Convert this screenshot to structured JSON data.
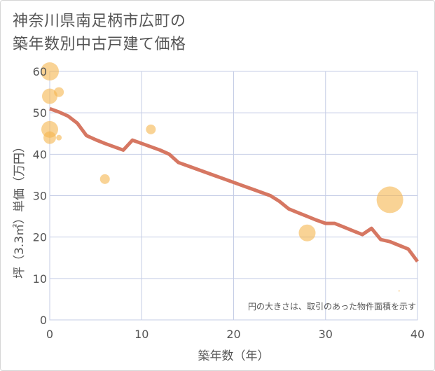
{
  "title_line1": "神奈川県南足柄市広町の",
  "title_line2": "築年数別中古戸建て価格",
  "chart_data": {
    "type": "scatter+line",
    "xlabel": "築年数（年）",
    "ylabel": "坪（3.3㎡）単価（万円）",
    "xlim": [
      0,
      40
    ],
    "ylim": [
      0,
      60
    ],
    "xticks": [
      0,
      10,
      20,
      30,
      40
    ],
    "yticks": [
      0,
      10,
      20,
      30,
      40,
      50,
      60
    ],
    "grid": true,
    "note": "円の大きさは、取引のあった物件面積を示す",
    "colors": {
      "bubble": "#f5b54f",
      "line": "#d4705a",
      "grid": "#c5cde6",
      "plot_border": "#c5cde6"
    },
    "trend_line": {
      "x": [
        0,
        1,
        2,
        3,
        4,
        5,
        6,
        7,
        8,
        9,
        10,
        11,
        12,
        13,
        14,
        15,
        16,
        17,
        18,
        19,
        20,
        21,
        22,
        23,
        24,
        25,
        26,
        27,
        28,
        29,
        30,
        31,
        32,
        33,
        34,
        35,
        36,
        37,
        38,
        39,
        40
      ],
      "y": [
        51,
        50.2,
        49.2,
        47.5,
        44.5,
        43.5,
        42.6,
        41.8,
        41,
        43.4,
        42.6,
        41.8,
        41,
        40,
        38,
        37.2,
        36.4,
        35.6,
        34.8,
        34,
        33.2,
        32.4,
        31.6,
        30.8,
        30,
        28.6,
        26.8,
        25.9,
        25,
        24.1,
        23.3,
        23.3,
        22.4,
        21.5,
        20.6,
        22.1,
        19.4,
        18.9,
        18,
        17.1,
        14.1
      ]
    },
    "bubbles": [
      {
        "x": 0,
        "y": 60,
        "size": 13
      },
      {
        "x": 0,
        "y": 54,
        "size": 11
      },
      {
        "x": 0,
        "y": 46,
        "size": 12
      },
      {
        "x": 0,
        "y": 44,
        "size": 9
      },
      {
        "x": 1,
        "y": 55,
        "size": 7
      },
      {
        "x": 1,
        "y": 44,
        "size": 4
      },
      {
        "x": 6,
        "y": 34,
        "size": 7
      },
      {
        "x": 11,
        "y": 46,
        "size": 7
      },
      {
        "x": 28,
        "y": 21,
        "size": 12
      },
      {
        "x": 37,
        "y": 29,
        "size": 19
      },
      {
        "x": 38,
        "y": 7,
        "size": 1
      }
    ]
  }
}
